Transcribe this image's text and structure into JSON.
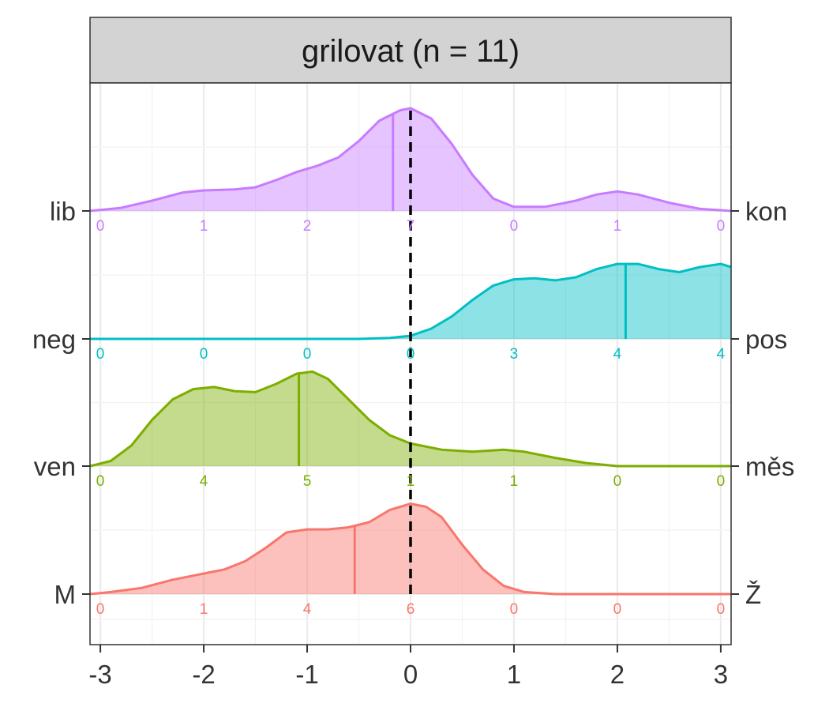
{
  "chart_data": {
    "type": "ridgeline",
    "title": "grilovat (n = 11)",
    "xlabel": "",
    "ylabel": "",
    "xlim": [
      -3.1,
      3.1
    ],
    "x_ticks": [
      -3,
      -2,
      -1,
      0,
      1,
      2,
      3
    ],
    "x_tick_labels": [
      "-3",
      "-2",
      "-1",
      "0",
      "1",
      "2",
      "3"
    ],
    "reference_line": 0,
    "grid": true,
    "count_positions": [
      -3,
      -2,
      -1,
      0,
      1,
      2,
      3
    ],
    "series": [
      {
        "left_label": "M",
        "right_label": "Ž",
        "color": "#F8766D",
        "mean": -0.54,
        "counts": [
          "0",
          "1",
          "4",
          "6",
          "0",
          "0",
          "0"
        ],
        "density": [
          [
            -3.1,
            0.0
          ],
          [
            -2.9,
            0.02
          ],
          [
            -2.6,
            0.06
          ],
          [
            -2.3,
            0.14
          ],
          [
            -2.0,
            0.2
          ],
          [
            -1.8,
            0.24
          ],
          [
            -1.6,
            0.32
          ],
          [
            -1.4,
            0.45
          ],
          [
            -1.2,
            0.6
          ],
          [
            -1.0,
            0.63
          ],
          [
            -0.8,
            0.63
          ],
          [
            -0.6,
            0.65
          ],
          [
            -0.4,
            0.7
          ],
          [
            -0.2,
            0.82
          ],
          [
            0.0,
            0.88
          ],
          [
            0.15,
            0.85
          ],
          [
            0.3,
            0.75
          ],
          [
            0.5,
            0.48
          ],
          [
            0.7,
            0.24
          ],
          [
            0.9,
            0.08
          ],
          [
            1.1,
            0.02
          ],
          [
            1.4,
            0.0
          ],
          [
            3.1,
            0.0
          ]
        ]
      },
      {
        "left_label": "ven",
        "right_label": "měs",
        "color": "#7CAE00",
        "mean": -1.08,
        "counts": [
          "0",
          "4",
          "5",
          "1",
          "1",
          "0",
          "0"
        ],
        "density": [
          [
            -3.1,
            0.0
          ],
          [
            -2.9,
            0.05
          ],
          [
            -2.7,
            0.2
          ],
          [
            -2.5,
            0.45
          ],
          [
            -2.3,
            0.65
          ],
          [
            -2.1,
            0.75
          ],
          [
            -1.9,
            0.77
          ],
          [
            -1.7,
            0.73
          ],
          [
            -1.5,
            0.72
          ],
          [
            -1.3,
            0.8
          ],
          [
            -1.1,
            0.9
          ],
          [
            -0.95,
            0.92
          ],
          [
            -0.8,
            0.85
          ],
          [
            -0.6,
            0.65
          ],
          [
            -0.4,
            0.45
          ],
          [
            -0.2,
            0.3
          ],
          [
            0.0,
            0.22
          ],
          [
            0.3,
            0.16
          ],
          [
            0.6,
            0.14
          ],
          [
            0.9,
            0.16
          ],
          [
            1.1,
            0.14
          ],
          [
            1.4,
            0.08
          ],
          [
            1.7,
            0.03
          ],
          [
            2.0,
            0.0
          ],
          [
            3.1,
            0.0
          ]
        ]
      },
      {
        "left_label": "neg",
        "right_label": "pos",
        "color": "#00BFC4",
        "mean": 2.08,
        "counts": [
          "0",
          "0",
          "0",
          "0",
          "3",
          "4",
          "4"
        ],
        "density": [
          [
            -3.1,
            0.0
          ],
          [
            -0.5,
            0.0
          ],
          [
            -0.2,
            0.01
          ],
          [
            0.0,
            0.03
          ],
          [
            0.2,
            0.1
          ],
          [
            0.4,
            0.22
          ],
          [
            0.6,
            0.38
          ],
          [
            0.8,
            0.52
          ],
          [
            1.0,
            0.58
          ],
          [
            1.2,
            0.59
          ],
          [
            1.4,
            0.57
          ],
          [
            1.6,
            0.6
          ],
          [
            1.8,
            0.68
          ],
          [
            2.0,
            0.73
          ],
          [
            2.2,
            0.73
          ],
          [
            2.4,
            0.68
          ],
          [
            2.6,
            0.65
          ],
          [
            2.8,
            0.7
          ],
          [
            3.0,
            0.73
          ],
          [
            3.1,
            0.7
          ]
        ]
      },
      {
        "left_label": "lib",
        "right_label": "kon",
        "color": "#C77CFF",
        "mean": -0.17,
        "counts": [
          "0",
          "1",
          "2",
          "7",
          "0",
          "1",
          "0"
        ],
        "density": [
          [
            -3.1,
            0.0
          ],
          [
            -2.8,
            0.03
          ],
          [
            -2.5,
            0.1
          ],
          [
            -2.2,
            0.18
          ],
          [
            -2.0,
            0.2
          ],
          [
            -1.7,
            0.21
          ],
          [
            -1.5,
            0.23
          ],
          [
            -1.3,
            0.3
          ],
          [
            -1.1,
            0.38
          ],
          [
            -0.9,
            0.44
          ],
          [
            -0.7,
            0.52
          ],
          [
            -0.5,
            0.68
          ],
          [
            -0.3,
            0.88
          ],
          [
            -0.1,
            0.98
          ],
          [
            0.0,
            1.0
          ],
          [
            0.2,
            0.9
          ],
          [
            0.4,
            0.65
          ],
          [
            0.6,
            0.35
          ],
          [
            0.8,
            0.12
          ],
          [
            1.0,
            0.04
          ],
          [
            1.3,
            0.04
          ],
          [
            1.6,
            0.1
          ],
          [
            1.8,
            0.16
          ],
          [
            2.0,
            0.19
          ],
          [
            2.2,
            0.16
          ],
          [
            2.5,
            0.08
          ],
          [
            2.8,
            0.02
          ],
          [
            3.1,
            0.0
          ]
        ]
      }
    ]
  }
}
